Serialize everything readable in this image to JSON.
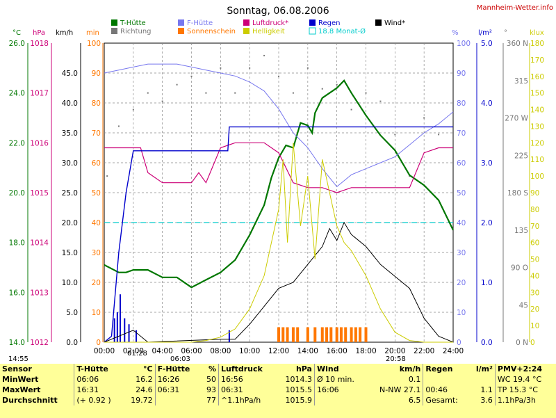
{
  "title": "Sonntag, 06.08.2006",
  "site": "Mannheim-Wetter.info",
  "legend": [
    {
      "label": "T-Hütte",
      "color": "#007700"
    },
    {
      "label": "F-Hütte",
      "color": "#7777ee"
    },
    {
      "label": "Luftdruck*",
      "color": "#cc0077"
    },
    {
      "label": "Regen",
      "color": "#0000cc"
    },
    {
      "label": "Wind*",
      "color": "#000000"
    },
    {
      "label": "Richtung",
      "color": "#777777"
    },
    {
      "label": "Sonnenschein",
      "color": "#ff7700"
    },
    {
      "label": "Helligkeit",
      "color": "#cccc00"
    },
    {
      "label": "18.8 Monat-Ø",
      "color": "#00cccc"
    }
  ],
  "axis_units": {
    "temp": "°C",
    "pressure": "hPa",
    "wind": "km/h",
    "min": "min",
    "humidity": "%",
    "rain": "l/m²",
    "dir": "°",
    "lux": "klux"
  },
  "colors": {
    "temp": "#007700",
    "humidity": "#7777ee",
    "pressure": "#cc0077",
    "rain": "#0000cc",
    "wind": "#000000",
    "dir": "#777777",
    "sun": "#ff7700",
    "lux": "#cccc00",
    "mean": "#00cccc"
  },
  "chart_data": {
    "type": "line",
    "x_ticks": [
      "00:00",
      "02:00",
      "04:00",
      "06:00",
      "08:00",
      "10:00",
      "12:00",
      "14:00",
      "16:00",
      "18:00",
      "20:00",
      "22:00",
      "24:00"
    ],
    "temp_ticks": [
      "26.0",
      "24.0",
      "22.0",
      "20.0",
      "18.0",
      "16.0",
      "14.0"
    ],
    "pressure_ticks": [
      "1018",
      "1017",
      "1016",
      "1015",
      "1014",
      "1013",
      "1012"
    ],
    "wind_ticks": [
      "45.0",
      "40.0",
      "35.0",
      "30.0",
      "25.0",
      "20.0",
      "15.0",
      "10.0",
      "5.0",
      "0.0"
    ],
    "min_ticks": [
      "100",
      "90",
      "80",
      "70",
      "60",
      "50",
      "40",
      "30",
      "20",
      "10",
      "0"
    ],
    "humidity_ticks": [
      "100",
      "90",
      "80",
      "70",
      "60",
      "50",
      "40",
      "30",
      "20",
      "10",
      "0"
    ],
    "rain_ticks": [
      "5.0",
      "4.0",
      "3.0",
      "2.0",
      "1.0",
      "0.0"
    ],
    "dir_ticks": [
      "360 N",
      "315",
      "270 W",
      "225",
      "180 S",
      "135",
      "90 O",
      "45",
      "0 N"
    ],
    "lux_ticks": [
      "180",
      "170",
      "160",
      "150",
      "140",
      "130",
      "120",
      "110",
      "100",
      "90",
      "80",
      "70",
      "60",
      "50",
      "40",
      "30",
      "20",
      "10",
      "0"
    ],
    "temp_ylim": [
      14,
      26
    ],
    "series": [
      {
        "name": "T-Hütte",
        "axis": "temp",
        "points": [
          [
            0,
            17.1
          ],
          [
            1,
            16.8
          ],
          [
            1.5,
            16.8
          ],
          [
            2,
            16.9
          ],
          [
            3,
            16.9
          ],
          [
            4,
            16.6
          ],
          [
            5,
            16.6
          ],
          [
            6,
            16.2
          ],
          [
            7,
            16.5
          ],
          [
            8,
            16.8
          ],
          [
            9,
            17.3
          ],
          [
            10,
            18.3
          ],
          [
            11,
            19.5
          ],
          [
            11.5,
            20.6
          ],
          [
            12,
            21.4
          ],
          [
            12.5,
            21.9
          ],
          [
            13,
            21.8
          ],
          [
            13.5,
            22.8
          ],
          [
            14,
            22.7
          ],
          [
            14.3,
            22.4
          ],
          [
            14.5,
            23.2
          ],
          [
            15,
            23.8
          ],
          [
            15.5,
            24.0
          ],
          [
            16,
            24.2
          ],
          [
            16.5,
            24.5
          ],
          [
            17,
            24.0
          ],
          [
            18,
            23.1
          ],
          [
            19,
            22.3
          ],
          [
            20,
            21.7
          ],
          [
            21,
            20.7
          ],
          [
            22,
            20.3
          ],
          [
            23,
            19.7
          ],
          [
            24,
            18.5
          ]
        ]
      },
      {
        "name": "F-Hütte",
        "axis": "humidity",
        "points": [
          [
            0,
            90
          ],
          [
            1,
            91
          ],
          [
            2,
            92
          ],
          [
            3,
            93
          ],
          [
            4,
            93
          ],
          [
            5,
            93
          ],
          [
            6,
            92
          ],
          [
            7,
            91
          ],
          [
            8,
            90
          ],
          [
            9,
            89
          ],
          [
            10,
            87
          ],
          [
            11,
            84
          ],
          [
            12,
            78
          ],
          [
            13,
            70
          ],
          [
            14,
            65
          ],
          [
            15,
            58
          ],
          [
            16,
            52
          ],
          [
            17,
            56
          ],
          [
            18,
            58
          ],
          [
            19,
            60
          ],
          [
            20,
            62
          ],
          [
            21,
            66
          ],
          [
            22,
            70
          ],
          [
            23,
            73
          ],
          [
            24,
            77
          ]
        ]
      },
      {
        "name": "Luftdruck*",
        "axis": "pressure",
        "points": [
          [
            0,
            1015.9
          ],
          [
            2.5,
            1015.9
          ],
          [
            3,
            1015.4
          ],
          [
            4,
            1015.2
          ],
          [
            5,
            1015.2
          ],
          [
            6,
            1015.2
          ],
          [
            6.5,
            1015.4
          ],
          [
            7,
            1015.2
          ],
          [
            8,
            1015.9
          ],
          [
            9,
            1016.0
          ],
          [
            10,
            1016.0
          ],
          [
            11,
            1016.0
          ],
          [
            12,
            1015.8
          ],
          [
            13,
            1015.2
          ],
          [
            14,
            1015.1
          ],
          [
            15,
            1015.1
          ],
          [
            16,
            1015.0
          ],
          [
            17,
            1015.1
          ],
          [
            18,
            1015.1
          ],
          [
            19,
            1015.1
          ],
          [
            20,
            1015.1
          ],
          [
            21,
            1015.1
          ],
          [
            22,
            1015.8
          ],
          [
            23,
            1015.9
          ],
          [
            24,
            1015.9
          ]
        ]
      },
      {
        "name": "Regen",
        "axis": "rain",
        "points": [
          [
            0,
            0
          ],
          [
            0.5,
            0.1
          ],
          [
            1,
            1.5
          ],
          [
            1.5,
            2.5
          ],
          [
            2,
            3.2
          ],
          [
            3,
            3.2
          ],
          [
            8.5,
            3.2
          ],
          [
            8.6,
            3.6
          ],
          [
            24,
            3.6
          ]
        ]
      },
      {
        "name": "Wind*",
        "axis": "wind",
        "points": [
          [
            0,
            0
          ],
          [
            2,
            2
          ],
          [
            3,
            0
          ],
          [
            8,
            0.5
          ],
          [
            9,
            0.5
          ],
          [
            10,
            3
          ],
          [
            11,
            6
          ],
          [
            12,
            9
          ],
          [
            13,
            10
          ],
          [
            14,
            13
          ],
          [
            15,
            16
          ],
          [
            15.5,
            19
          ],
          [
            16,
            17
          ],
          [
            16.5,
            20
          ],
          [
            17,
            18
          ],
          [
            18,
            16
          ],
          [
            19,
            13
          ],
          [
            20,
            11
          ],
          [
            21,
            9
          ],
          [
            22,
            4
          ],
          [
            23,
            1
          ],
          [
            24,
            0
          ]
        ]
      },
      {
        "name": "Helligkeit",
        "axis": "lux",
        "points": [
          [
            0,
            0
          ],
          [
            6,
            0
          ],
          [
            7,
            1
          ],
          [
            8,
            3
          ],
          [
            9,
            8
          ],
          [
            10,
            20
          ],
          [
            11,
            40
          ],
          [
            12,
            80
          ],
          [
            12.3,
            110
          ],
          [
            12.6,
            60
          ],
          [
            13,
            120
          ],
          [
            13.5,
            70
          ],
          [
            14,
            100
          ],
          [
            14.5,
            50
          ],
          [
            15,
            110
          ],
          [
            15.5,
            90
          ],
          [
            16,
            70
          ],
          [
            16.5,
            60
          ],
          [
            17,
            55
          ],
          [
            18,
            40
          ],
          [
            19,
            20
          ],
          [
            20,
            6
          ],
          [
            21,
            1
          ],
          [
            22,
            0
          ],
          [
            24,
            0
          ]
        ]
      }
    ],
    "monthly_mean": {
      "name": "18.8 Monat-Ø",
      "axis": "temp",
      "value": 18.8
    },
    "direction_points": [
      [
        0.2,
        200
      ],
      [
        1,
        260
      ],
      [
        2,
        280
      ],
      [
        3,
        300
      ],
      [
        4,
        290
      ],
      [
        5,
        310
      ],
      [
        6,
        320
      ],
      [
        7,
        300
      ],
      [
        8,
        330
      ],
      [
        9,
        300
      ],
      [
        10,
        330
      ],
      [
        11,
        345
      ],
      [
        12,
        320
      ],
      [
        13,
        300
      ],
      [
        14,
        330
      ],
      [
        15,
        305
      ],
      [
        16,
        310
      ],
      [
        17,
        280
      ],
      [
        18,
        300
      ],
      [
        19,
        290
      ],
      [
        20,
        250
      ],
      [
        21,
        200
      ],
      [
        22,
        270
      ],
      [
        23,
        250
      ]
    ],
    "sunshine_minutes": [
      [
        12,
        5
      ],
      [
        12.3,
        5
      ],
      [
        12.6,
        5
      ],
      [
        13,
        5
      ],
      [
        13.3,
        5
      ],
      [
        14,
        5
      ],
      [
        14.5,
        5
      ],
      [
        15,
        5
      ],
      [
        15.3,
        5
      ],
      [
        15.6,
        5
      ],
      [
        16,
        5
      ],
      [
        16.3,
        5
      ],
      [
        16.6,
        5
      ],
      [
        17,
        5
      ],
      [
        17.3,
        5
      ],
      [
        17.6,
        5
      ],
      [
        18,
        5
      ]
    ],
    "rain_bars": [
      [
        0.7,
        4
      ],
      [
        0.9,
        5
      ],
      [
        1.1,
        8
      ],
      [
        1.4,
        4
      ],
      [
        1.7,
        3
      ],
      [
        2.2,
        2
      ],
      [
        8.6,
        2
      ]
    ],
    "markers": {
      "sunrise": "06:03",
      "sunset": "20:58",
      "label_0155": "14:55",
      "label_0128": "01:28"
    }
  },
  "stats": {
    "header": [
      "Sensor",
      "T-Hütte",
      "°C",
      "F-Hütte",
      "%",
      "Luftdruck",
      "hPa",
      "Wind",
      "km/h",
      "Regen",
      "l/m²",
      "PMV+2:24"
    ],
    "rows": [
      [
        "MinWert",
        "06:06",
        "16.2",
        "16:26",
        "50",
        "16:56",
        "1014.3",
        "Ø 10 min.",
        "0.1",
        "",
        "",
        "WC 19.4 °C"
      ],
      [
        "MaxWert",
        "16:31",
        "24.6",
        "06:31",
        "93",
        "06:31",
        "1015.5",
        "16:06",
        "N-NW 27.1",
        "00:46",
        "1.1",
        "TP 15.3 °C"
      ],
      [
        "Durchschnitt",
        "(+ 0.92 )",
        "19.72",
        "",
        "77",
        "^1.1hPa/h",
        "1015.9",
        "",
        "6.5",
        "Gesamt:",
        "3.6",
        "1.1hPa/3h"
      ]
    ]
  }
}
